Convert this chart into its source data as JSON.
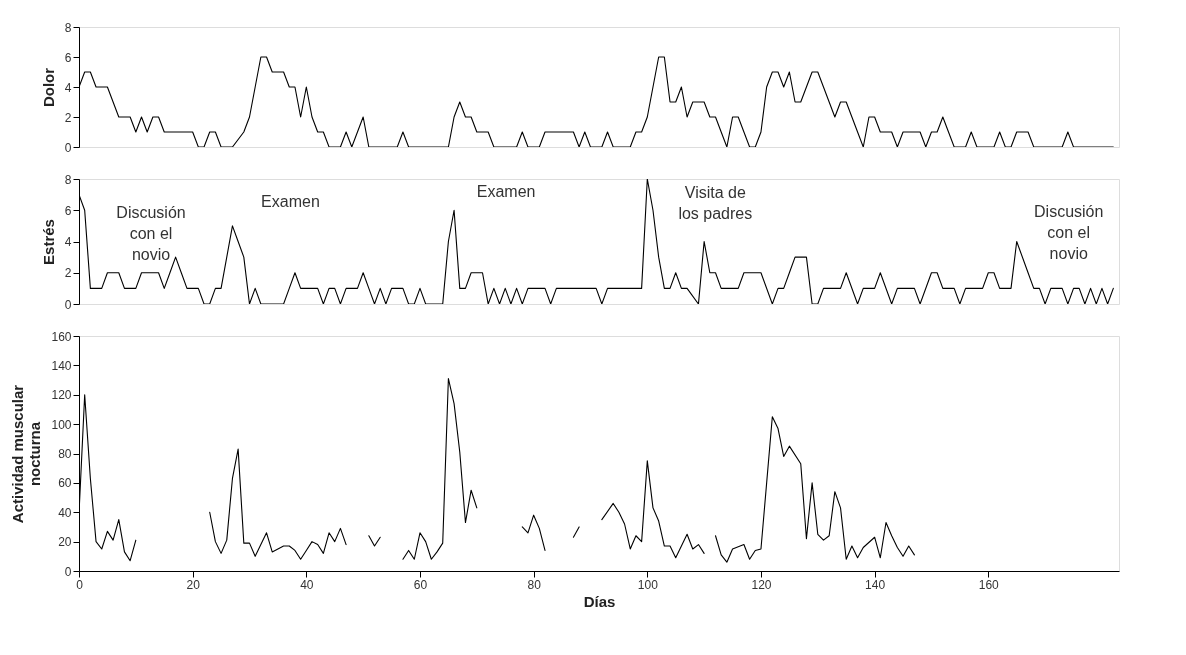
{
  "chart_data": [
    {
      "type": "line",
      "ylabel": "Dolor",
      "xlim": [
        0,
        183
      ],
      "ylim": [
        0,
        8
      ],
      "yticks": [
        0,
        2,
        4,
        6,
        8
      ],
      "tick_labels": "y",
      "grid": false,
      "marker": "none",
      "line_style": "solid",
      "x": [
        0,
        1,
        2,
        3,
        5,
        7,
        9,
        10,
        11,
        12,
        13,
        14,
        15,
        20,
        21,
        22,
        23,
        24,
        25,
        27,
        29,
        30,
        31,
        32,
        33,
        34,
        36,
        37,
        38,
        39,
        40,
        41,
        42,
        43,
        44,
        46,
        47,
        48,
        50,
        51,
        56,
        57,
        58,
        65,
        66,
        67,
        68,
        69,
        70,
        72,
        73,
        77,
        78,
        79,
        81,
        82,
        87,
        88,
        89,
        90,
        92,
        93,
        94,
        97,
        98,
        99,
        100,
        101,
        102,
        103,
        104,
        105,
        106,
        107,
        108,
        110,
        111,
        112,
        113,
        114,
        115,
        116,
        117,
        118,
        119,
        120,
        121,
        122,
        123,
        124,
        125,
        126,
        127,
        129,
        130,
        131,
        132,
        133,
        134,
        135,
        136,
        137,
        138,
        139,
        140,
        141,
        143,
        144,
        145,
        148,
        149,
        150,
        151,
        152,
        153,
        154,
        156,
        157,
        158,
        161,
        162,
        163,
        164,
        165,
        167,
        168,
        173,
        174,
        175,
        182
      ],
      "series": [
        {
          "color": "#000000",
          "values": [
            4,
            5,
            5,
            4,
            4,
            2,
            2,
            1,
            2,
            1,
            2,
            2,
            1,
            1,
            0,
            0,
            1,
            1,
            0,
            0,
            1,
            2,
            4,
            6,
            6,
            5,
            5,
            4,
            4,
            2,
            4,
            2,
            1,
            1,
            0,
            0,
            1,
            0,
            2,
            0,
            0,
            1,
            0,
            0,
            2,
            3,
            2,
            2,
            1,
            1,
            0,
            0,
            1,
            0,
            0,
            1,
            1,
            0,
            1,
            0,
            0,
            1,
            0,
            0,
            1,
            1,
            2,
            4,
            6,
            6,
            3,
            3,
            4,
            2,
            3,
            3,
            2,
            2,
            1,
            0,
            2,
            2,
            1,
            0,
            0,
            1,
            4,
            5,
            5,
            4,
            5,
            3,
            3,
            5,
            5,
            4,
            3,
            2,
            3,
            3,
            2,
            1,
            0,
            2,
            2,
            1,
            1,
            0,
            1,
            1,
            0,
            1,
            1,
            2,
            1,
            0,
            0,
            1,
            0,
            0,
            1,
            0,
            0,
            1,
            1,
            0,
            0,
            1,
            0,
            0
          ]
        }
      ]
    },
    {
      "type": "line",
      "ylabel": "Estrés",
      "xlim": [
        0,
        183
      ],
      "ylim": [
        0,
        8
      ],
      "yticks": [
        0,
        2,
        4,
        6,
        8
      ],
      "tick_labels": "y",
      "grid": false,
      "marker": "none",
      "line_style": "solid",
      "x": [
        0,
        1,
        2,
        4,
        5,
        7,
        8,
        10,
        11,
        14,
        15,
        16,
        17,
        18,
        19,
        21,
        22,
        23,
        24,
        25,
        26,
        27,
        28,
        29,
        30,
        31,
        32,
        36,
        37,
        38,
        39,
        42,
        43,
        44,
        45,
        46,
        47,
        49,
        50,
        51,
        52,
        53,
        54,
        55,
        57,
        58,
        59,
        60,
        61,
        64,
        65,
        66,
        67,
        68,
        69,
        71,
        72,
        73,
        74,
        75,
        76,
        77,
        78,
        79,
        82,
        83,
        84,
        91,
        92,
        93,
        99,
        100,
        101,
        102,
        103,
        104,
        105,
        106,
        107,
        109,
        110,
        111,
        112,
        113,
        116,
        117,
        120,
        122,
        123,
        124,
        125,
        126,
        128,
        129,
        130,
        131,
        134,
        135,
        137,
        138,
        140,
        141,
        143,
        144,
        147,
        148,
        150,
        151,
        152,
        154,
        155,
        156,
        159,
        160,
        161,
        162,
        164,
        165,
        167,
        168,
        169,
        170,
        171,
        173,
        174,
        175,
        176,
        177,
        178,
        179,
        180,
        181,
        182
      ],
      "series": [
        {
          "color": "#000000",
          "values": [
            7,
            6,
            1,
            1,
            2,
            2,
            1,
            1,
            2,
            2,
            1,
            2,
            3,
            2,
            1,
            1,
            0,
            0,
            1,
            1,
            3,
            5,
            4,
            3,
            0,
            1,
            0,
            0,
            1,
            2,
            1,
            1,
            0,
            1,
            1,
            0,
            1,
            1,
            2,
            1,
            0,
            1,
            0,
            1,
            1,
            0,
            0,
            1,
            0,
            0,
            4,
            6,
            1,
            1,
            2,
            2,
            0,
            1,
            0,
            1,
            0,
            1,
            0,
            1,
            1,
            0,
            1,
            1,
            0,
            1,
            1,
            8,
            6,
            3,
            1,
            1,
            2,
            1,
            1,
            0,
            4,
            2,
            2,
            1,
            1,
            2,
            2,
            0,
            1,
            1,
            2,
            3,
            3,
            0,
            0,
            1,
            1,
            2,
            0,
            1,
            1,
            2,
            0,
            1,
            1,
            0,
            2,
            2,
            1,
            1,
            0,
            1,
            1,
            2,
            2,
            1,
            1,
            4,
            2,
            1,
            1,
            0,
            1,
            1,
            0,
            1,
            1,
            0,
            1,
            0,
            1,
            0,
            1
          ]
        }
      ],
      "annotations": [
        {
          "text": "Discusión con el novio",
          "x": 0,
          "y": 7
        },
        {
          "text": "Examen",
          "x": 27,
          "y": 5
        },
        {
          "text": "Examen",
          "x": 66,
          "y": 6
        },
        {
          "text": "Visita de los padres",
          "x": 100,
          "y": 8
        },
        {
          "text": "Discusión con el novio",
          "x": 165,
          "y": 4
        }
      ]
    },
    {
      "type": "line",
      "ylabel": "Actividad muscular nocturna",
      "xlabel": "Días",
      "xlim": [
        0,
        183
      ],
      "xticks": [
        0,
        20,
        40,
        60,
        80,
        100,
        120,
        140,
        160
      ],
      "ylim": [
        0,
        160
      ],
      "yticks": [
        0,
        20,
        40,
        60,
        80,
        100,
        120,
        140,
        160
      ],
      "grid": false,
      "marker": "none",
      "line_style": "solid",
      "x": [
        0,
        1,
        2,
        3,
        4,
        5,
        6,
        7,
        8,
        9,
        10,
        15,
        23,
        24,
        25,
        26,
        27,
        28,
        29,
        30,
        31,
        32,
        33,
        34,
        36,
        37,
        38,
        39,
        40,
        41,
        42,
        43,
        44,
        45,
        46,
        47,
        49,
        51,
        52,
        53,
        55,
        57,
        58,
        59,
        60,
        61,
        62,
        63,
        64,
        65,
        66,
        67,
        68,
        69,
        70,
        74,
        78,
        79,
        80,
        81,
        82,
        84,
        87,
        88,
        90,
        92,
        94,
        95,
        96,
        97,
        98,
        99,
        100,
        101,
        102,
        103,
        104,
        105,
        107,
        108,
        109,
        110,
        111,
        112,
        113,
        114,
        115,
        117,
        118,
        119,
        120,
        121,
        122,
        123,
        124,
        125,
        127,
        128,
        129,
        130,
        131,
        132,
        133,
        134,
        135,
        136,
        137,
        138,
        140,
        141,
        142,
        143,
        144,
        145,
        146,
        147
      ],
      "series": [
        {
          "color": "#000000",
          "values": [
            39,
            120,
            63,
            20,
            15,
            27,
            21,
            35,
            13,
            7,
            21,
            null,
            40,
            20,
            12,
            21,
            63,
            83,
            19,
            19,
            10,
            18,
            26,
            13,
            17,
            17,
            14,
            8,
            14,
            20,
            18,
            12,
            26,
            20,
            29,
            18,
            null,
            24,
            17,
            23,
            null,
            8,
            14,
            8,
            26,
            20,
            8,
            13,
            19,
            131,
            114,
            81,
            33,
            55,
            43,
            null,
            30,
            26,
            38,
            29,
            14,
            null,
            23,
            30,
            null,
            35,
            46,
            40,
            32,
            15,
            24,
            20,
            75,
            43,
            34,
            17,
            17,
            9,
            25,
            15,
            18,
            12,
            null,
            24,
            11,
            6,
            15,
            18,
            8,
            14,
            15,
            60,
            105,
            97,
            78,
            85,
            73,
            22,
            60,
            25,
            21,
            24,
            54,
            43,
            8,
            17,
            9,
            16,
            23,
            9,
            33,
            24,
            16,
            10,
            17,
            11
          ]
        }
      ]
    }
  ]
}
